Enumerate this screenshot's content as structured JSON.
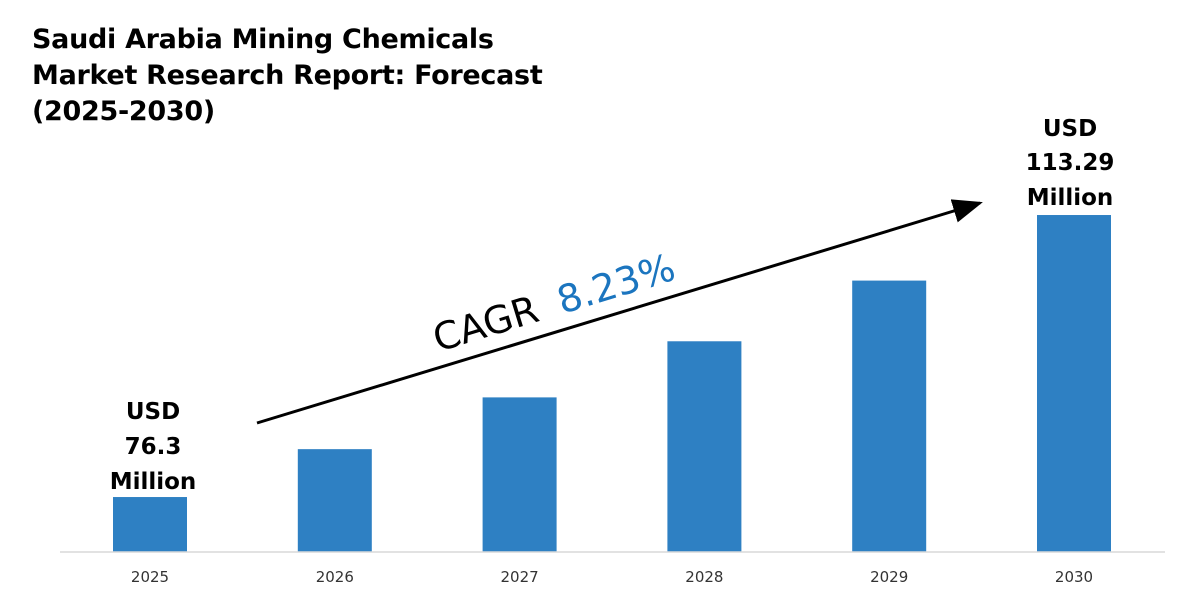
{
  "chart_data": {
    "type": "bar",
    "title": "Saudi Arabia Mining Chemicals Market Research Report: Forecast (2025-2030)",
    "xlabel": "",
    "ylabel": "",
    "categories": [
      "2025",
      "2026",
      "2027",
      "2028",
      "2029",
      "2030"
    ],
    "values": [
      76.3,
      82.58,
      89.37,
      96.73,
      104.69,
      113.29
    ],
    "unit": "USD Million",
    "grid": false,
    "bar_color": "#2e80c3",
    "annotations": {
      "start": {
        "line1": "USD",
        "line2": "76.3",
        "line3": "Million"
      },
      "end": {
        "line1": "USD",
        "line2": "113.29",
        "line3": "Million"
      },
      "cagr_label": "CAGR",
      "cagr_value": "8.23%",
      "cagr_color": "#1b75bf"
    }
  }
}
